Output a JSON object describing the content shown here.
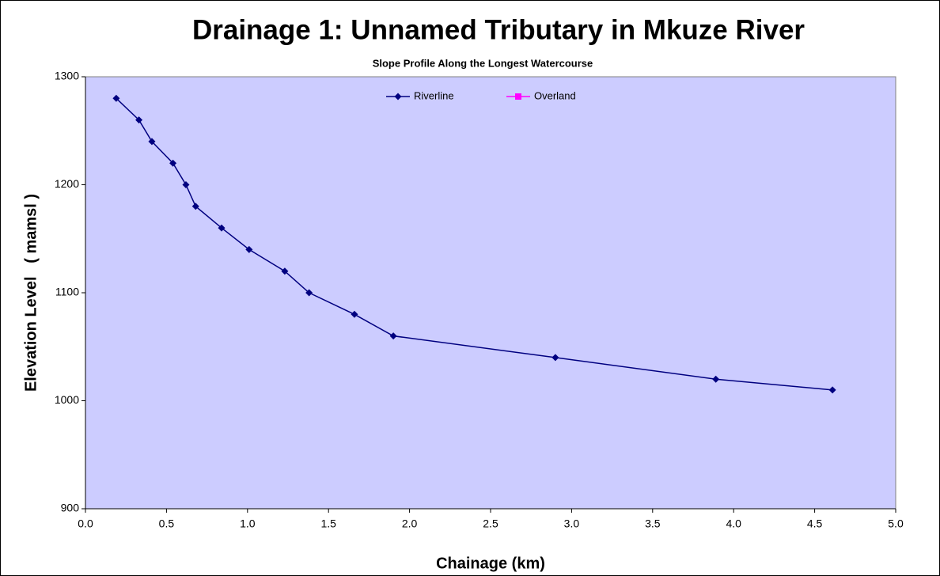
{
  "chart_data": {
    "type": "line",
    "title": "Drainage 1: Unnamed Tributary in Mkuze River",
    "subtitle": "Slope Profile Along the Longest Watercourse",
    "xlabel": "Chainage (km)",
    "ylabel": "Elevation Level   ( mamsl )",
    "x": [
      0.19,
      0.33,
      0.41,
      0.54,
      0.62,
      0.68,
      0.84,
      1.01,
      1.23,
      1.38,
      1.66,
      1.9,
      2.9,
      3.89,
      4.61
    ],
    "series": [
      {
        "name": "Riverline",
        "color": "#000080",
        "marker": "diamond",
        "values": [
          1280,
          1260,
          1240,
          1220,
          1200,
          1180,
          1160,
          1140,
          1120,
          1100,
          1080,
          1060,
          1040,
          1020,
          1010
        ]
      },
      {
        "name": "Overland",
        "color": "#ff00ff",
        "marker": "square",
        "values": [
          null,
          null,
          null,
          null,
          null,
          null,
          null,
          null,
          null,
          null,
          null,
          null,
          null,
          null,
          null
        ]
      }
    ],
    "xlim": [
      0,
      5
    ],
    "xticks": [
      {
        "value": 0,
        "label": "0.0"
      },
      0.5,
      {
        "value": 1,
        "label": "1.0"
      },
      1.5,
      {
        "value": 2,
        "label": "2.0"
      },
      2.5,
      {
        "value": 3,
        "label": "3.0"
      },
      3.5,
      {
        "value": 4,
        "label": "4.0"
      },
      4.5,
      {
        "value": 5,
        "label": "5.0"
      }
    ],
    "ylim": [
      900,
      1300
    ],
    "yticks": [
      900,
      1000,
      1100,
      1200,
      1300
    ],
    "grid": false,
    "legend": "top",
    "background": "#ccccff"
  }
}
